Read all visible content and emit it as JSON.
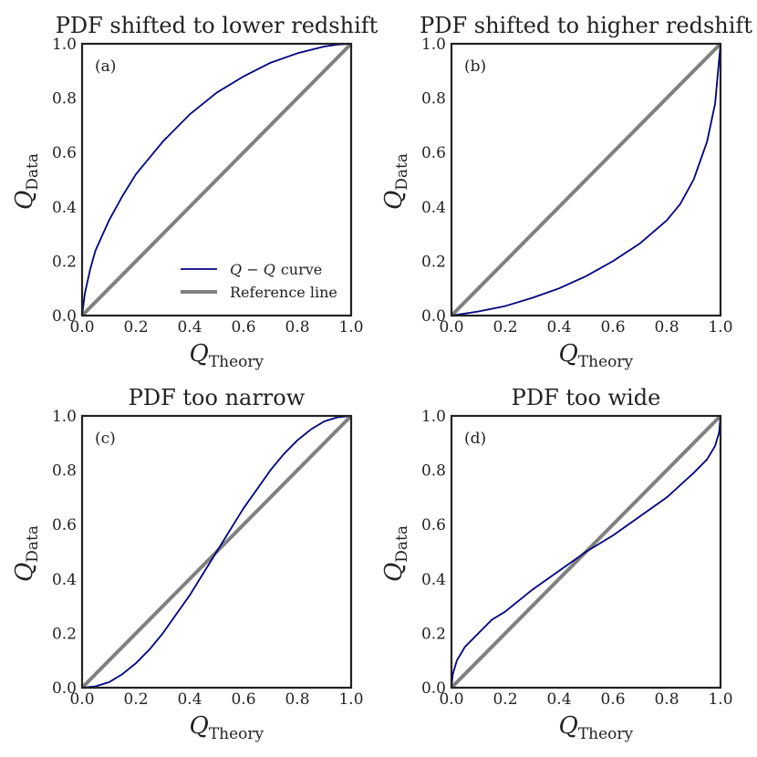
{
  "figure": {
    "style": {
      "qq_color": "#000080",
      "reference_color": "#808080",
      "frame_color": "#222222"
    },
    "axis_label_x": {
      "main": "Q",
      "sub": "Theory"
    },
    "axis_label_y": {
      "main": "Q",
      "sub": "Data"
    },
    "legend": {
      "qq_label_math": "Q − Q",
      "qq_label_rest": "curve",
      "reference_label": "Reference line"
    }
  },
  "chart_data": [
    {
      "type": "line",
      "panel": "(a)",
      "title": "PDF shifted to lower redshift",
      "xlabel": "Q_Theory",
      "ylabel": "Q_Data",
      "xlim": [
        0.0,
        1.0
      ],
      "ylim": [
        0.0,
        1.0
      ],
      "xticks": [
        "0.0",
        "0.2",
        "0.4",
        "0.6",
        "0.8",
        "1.0"
      ],
      "yticks": [
        "0.0",
        "0.2",
        "0.4",
        "0.6",
        "0.8",
        "1.0"
      ],
      "legend_position": "lower-right",
      "series": [
        {
          "name": "Q − Q curve",
          "x": [
            0,
            0.01,
            0.03,
            0.05,
            0.1,
            0.15,
            0.2,
            0.3,
            0.4,
            0.5,
            0.6,
            0.7,
            0.8,
            0.9,
            0.95,
            1.0
          ],
          "y": [
            0,
            0.08,
            0.17,
            0.24,
            0.35,
            0.44,
            0.52,
            0.64,
            0.74,
            0.82,
            0.88,
            0.93,
            0.965,
            0.99,
            0.997,
            1.0
          ]
        },
        {
          "name": "Reference line",
          "x": [
            0,
            1
          ],
          "y": [
            0,
            1
          ]
        }
      ]
    },
    {
      "type": "line",
      "panel": "(b)",
      "title": "PDF shifted to higher redshift",
      "xlabel": "Q_Theory",
      "ylabel": "Q_Data",
      "xlim": [
        0.0,
        1.0
      ],
      "ylim": [
        0.0,
        1.0
      ],
      "xticks": [
        "0.0",
        "0.2",
        "0.4",
        "0.6",
        "0.8",
        "1.0"
      ],
      "yticks": [
        "0.0",
        "0.2",
        "0.4",
        "0.6",
        "0.8",
        "1.0"
      ],
      "series": [
        {
          "name": "Q − Q curve",
          "x": [
            0,
            0.1,
            0.2,
            0.3,
            0.4,
            0.5,
            0.6,
            0.7,
            0.8,
            0.85,
            0.9,
            0.95,
            0.98,
            1.0
          ],
          "y": [
            0,
            0.015,
            0.035,
            0.065,
            0.1,
            0.145,
            0.2,
            0.265,
            0.35,
            0.41,
            0.5,
            0.64,
            0.78,
            1.0
          ]
        },
        {
          "name": "Reference line",
          "x": [
            0,
            1
          ],
          "y": [
            0,
            1
          ]
        }
      ]
    },
    {
      "type": "line",
      "panel": "(c)",
      "title": "PDF too narrow",
      "xlabel": "Q_Theory",
      "ylabel": "Q_Data",
      "xlim": [
        0.0,
        1.0
      ],
      "ylim": [
        0.0,
        1.0
      ],
      "xticks": [
        "0.0",
        "0.2",
        "0.4",
        "0.6",
        "0.8",
        "1.0"
      ],
      "yticks": [
        "0.0",
        "0.2",
        "0.4",
        "0.6",
        "0.8",
        "1.0"
      ],
      "series": [
        {
          "name": "Q − Q curve",
          "x": [
            0,
            0.05,
            0.1,
            0.15,
            0.2,
            0.25,
            0.3,
            0.35,
            0.4,
            0.45,
            0.5,
            0.55,
            0.6,
            0.65,
            0.7,
            0.75,
            0.8,
            0.85,
            0.9,
            0.95,
            1.0
          ],
          "y": [
            0,
            0.005,
            0.02,
            0.05,
            0.09,
            0.14,
            0.2,
            0.27,
            0.34,
            0.42,
            0.5,
            0.58,
            0.66,
            0.73,
            0.8,
            0.86,
            0.91,
            0.95,
            0.98,
            0.995,
            1.0
          ]
        },
        {
          "name": "Reference line",
          "x": [
            0,
            1
          ],
          "y": [
            0,
            1
          ]
        }
      ]
    },
    {
      "type": "line",
      "panel": "(d)",
      "title": "PDF too wide",
      "xlabel": "Q_Theory",
      "ylabel": "Q_Data",
      "xlim": [
        0.0,
        1.0
      ],
      "ylim": [
        0.0,
        1.0
      ],
      "xticks": [
        "0.0",
        "0.2",
        "0.4",
        "0.6",
        "0.8",
        "1.0"
      ],
      "yticks": [
        "0.0",
        "0.2",
        "0.4",
        "0.6",
        "0.8",
        "1.0"
      ],
      "series": [
        {
          "name": "Q − Q curve",
          "x": [
            0,
            0.005,
            0.02,
            0.05,
            0.1,
            0.15,
            0.2,
            0.3,
            0.4,
            0.5,
            0.6,
            0.7,
            0.8,
            0.85,
            0.9,
            0.95,
            0.98,
            0.995,
            1.0
          ],
          "y": [
            0,
            0.05,
            0.1,
            0.15,
            0.2,
            0.25,
            0.28,
            0.36,
            0.43,
            0.5,
            0.56,
            0.63,
            0.7,
            0.745,
            0.79,
            0.84,
            0.89,
            0.94,
            1.0
          ]
        },
        {
          "name": "Reference line",
          "x": [
            0,
            1
          ],
          "y": [
            0,
            1
          ]
        }
      ]
    }
  ]
}
